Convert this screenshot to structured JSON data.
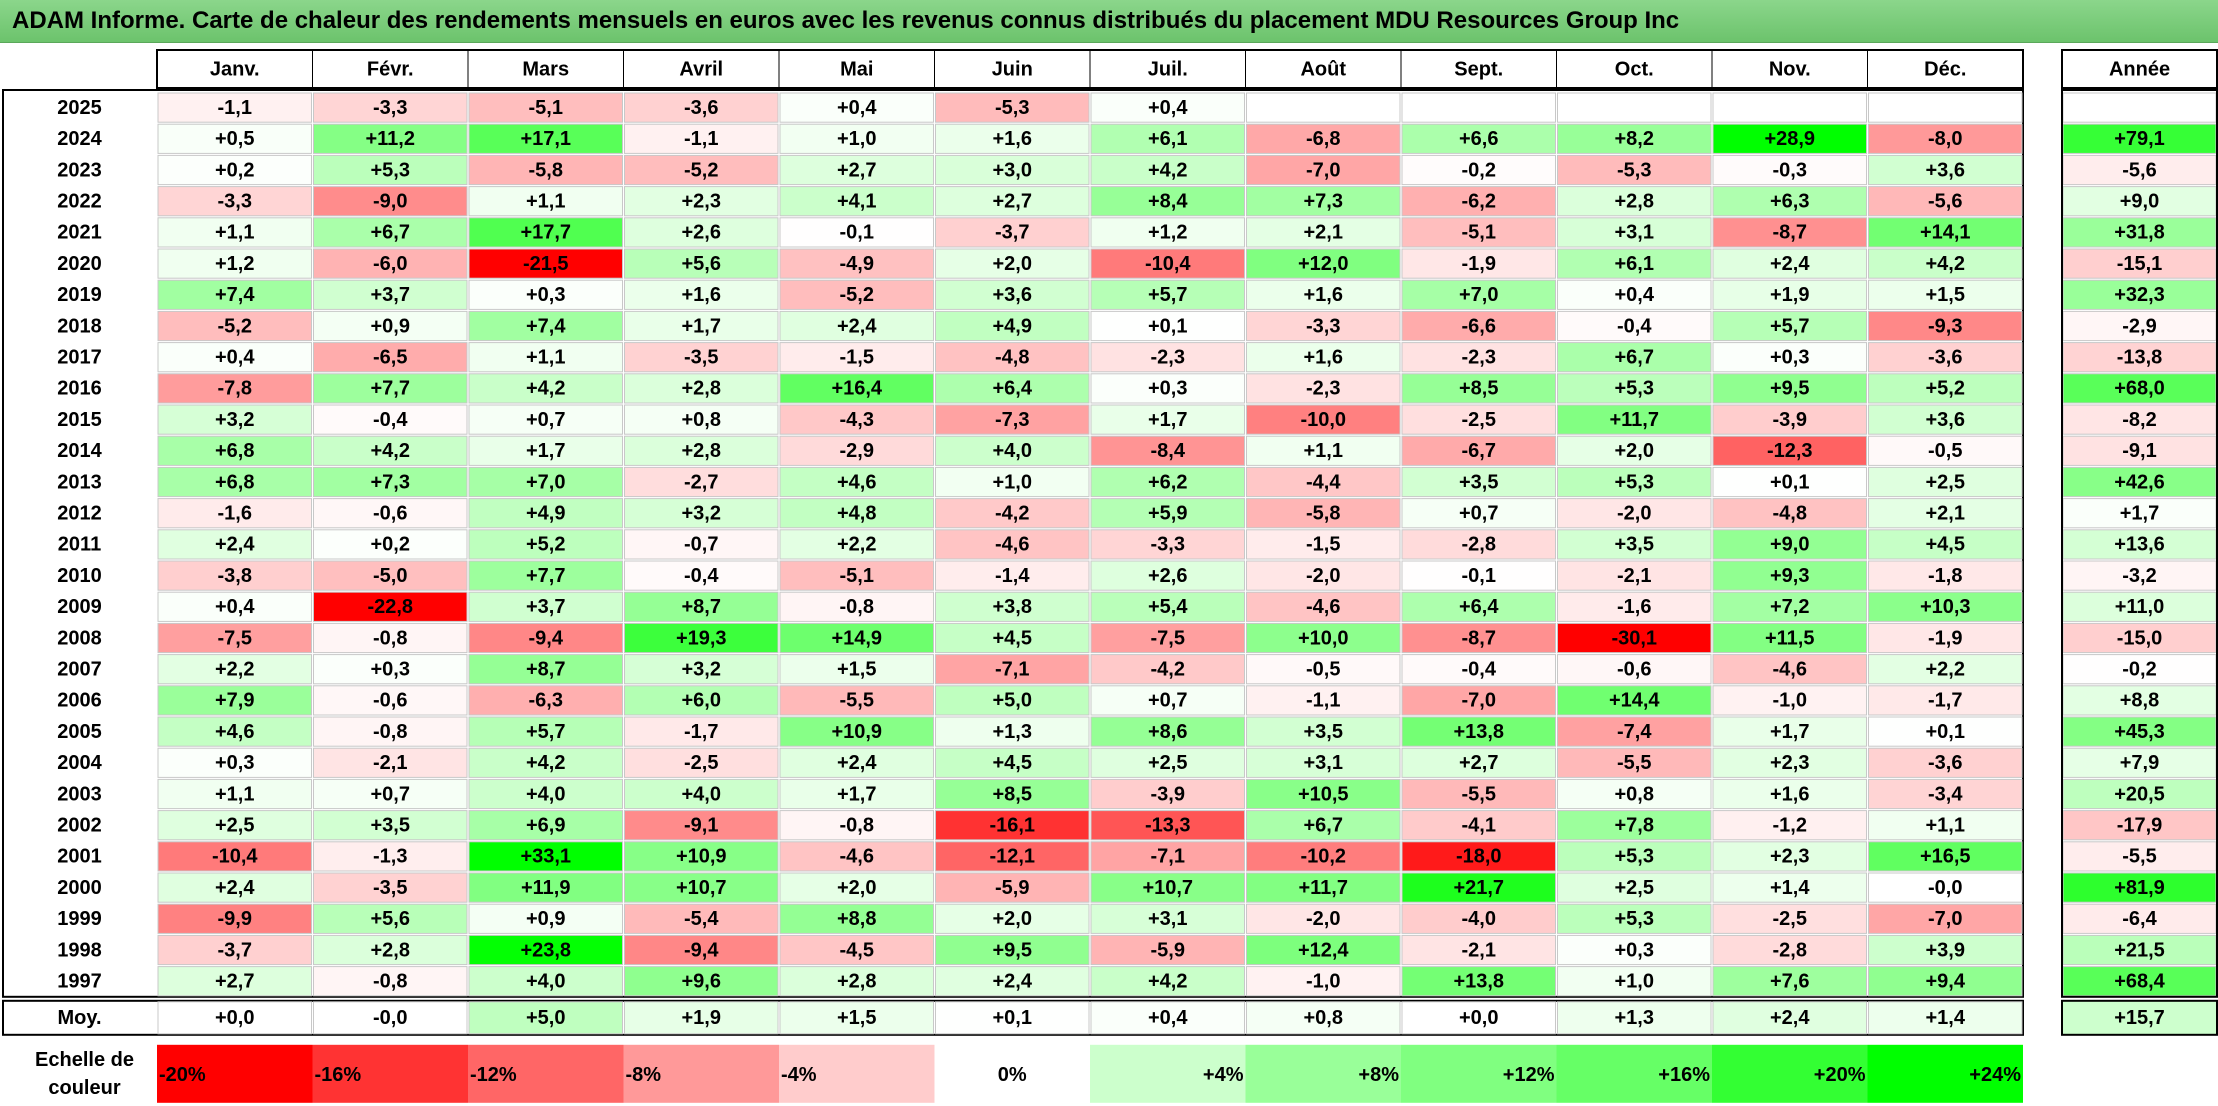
{
  "title": "ADAM Informe. Carte de chaleur des rendements mensuels en euros avec les revenus connus distribués du placement MDU Resources Group Inc",
  "chart_data": {
    "type": "heatmap",
    "title": "ADAM Informe. Carte de chaleur des rendements mensuels en euros avec les revenus connus distribués du placement MDU Resources Group Inc",
    "columns": [
      "Janv.",
      "Févr.",
      "Mars",
      "Avril",
      "Mai",
      "Juin",
      "Juil.",
      "Août",
      "Sept.",
      "Oct.",
      "Nov.",
      "Déc."
    ],
    "year_header": "Année",
    "rows": [
      {
        "year": "2025",
        "months": [
          "-1,1",
          "-3,3",
          "-5,1",
          "-3,6",
          "+0,4",
          "-5,3",
          "+0,4",
          "",
          "",
          "",
          "",
          ""
        ],
        "annual": ""
      },
      {
        "year": "2024",
        "months": [
          "+0,5",
          "+11,2",
          "+17,1",
          "-1,1",
          "+1,0",
          "+1,6",
          "+6,1",
          "-6,8",
          "+6,6",
          "+8,2",
          "+28,9",
          "-8,0"
        ],
        "annual": "+79,1"
      },
      {
        "year": "2023",
        "months": [
          "+0,2",
          "+5,3",
          "-5,8",
          "-5,2",
          "+2,7",
          "+3,0",
          "+4,2",
          "-7,0",
          "-0,2",
          "-5,3",
          "-0,3",
          "+3,6"
        ],
        "annual": "-5,6"
      },
      {
        "year": "2022",
        "months": [
          "-3,3",
          "-9,0",
          "+1,1",
          "+2,3",
          "+4,1",
          "+2,7",
          "+8,4",
          "+7,3",
          "-6,2",
          "+2,8",
          "+6,3",
          "-5,6"
        ],
        "annual": "+9,0"
      },
      {
        "year": "2021",
        "months": [
          "+1,1",
          "+6,7",
          "+17,7",
          "+2,6",
          "-0,1",
          "-3,7",
          "+1,2",
          "+2,1",
          "-5,1",
          "+3,1",
          "-8,7",
          "+14,1"
        ],
        "annual": "+31,8"
      },
      {
        "year": "2020",
        "months": [
          "+1,2",
          "-6,0",
          "-21,5",
          "+5,6",
          "-4,9",
          "+2,0",
          "-10,4",
          "+12,0",
          "-1,9",
          "+6,1",
          "+2,4",
          "+4,2"
        ],
        "annual": "-15,1"
      },
      {
        "year": "2019",
        "months": [
          "+7,4",
          "+3,7",
          "+0,3",
          "+1,6",
          "-5,2",
          "+3,6",
          "+5,7",
          "+1,6",
          "+7,0",
          "+0,4",
          "+1,9",
          "+1,5"
        ],
        "annual": "+32,3"
      },
      {
        "year": "2018",
        "months": [
          "-5,2",
          "+0,9",
          "+7,4",
          "+1,7",
          "+2,4",
          "+4,9",
          "+0,1",
          "-3,3",
          "-6,6",
          "-0,4",
          "+5,7",
          "-9,3"
        ],
        "annual": "-2,9"
      },
      {
        "year": "2017",
        "months": [
          "+0,4",
          "-6,5",
          "+1,1",
          "-3,5",
          "-1,5",
          "-4,8",
          "-2,3",
          "+1,6",
          "-2,3",
          "+6,7",
          "+0,3",
          "-3,6"
        ],
        "annual": "-13,8"
      },
      {
        "year": "2016",
        "months": [
          "-7,8",
          "+7,7",
          "+4,2",
          "+2,8",
          "+16,4",
          "+6,4",
          "+0,3",
          "-2,3",
          "+8,5",
          "+5,3",
          "+9,5",
          "+5,2"
        ],
        "annual": "+68,0"
      },
      {
        "year": "2015",
        "months": [
          "+3,2",
          "-0,4",
          "+0,7",
          "+0,8",
          "-4,3",
          "-7,3",
          "+1,7",
          "-10,0",
          "-2,5",
          "+11,7",
          "-3,9",
          "+3,6"
        ],
        "annual": "-8,2"
      },
      {
        "year": "2014",
        "months": [
          "+6,8",
          "+4,2",
          "+1,7",
          "+2,8",
          "-2,9",
          "+4,0",
          "-8,4",
          "+1,1",
          "-6,7",
          "+2,0",
          "-12,3",
          "-0,5"
        ],
        "annual": "-9,1"
      },
      {
        "year": "2013",
        "months": [
          "+6,8",
          "+7,3",
          "+7,0",
          "-2,7",
          "+4,6",
          "+1,0",
          "+6,2",
          "-4,4",
          "+3,5",
          "+5,3",
          "+0,1",
          "+2,5"
        ],
        "annual": "+42,6"
      },
      {
        "year": "2012",
        "months": [
          "-1,6",
          "-0,6",
          "+4,9",
          "+3,2",
          "+4,8",
          "-4,2",
          "+5,9",
          "-5,8",
          "+0,7",
          "-2,0",
          "-4,8",
          "+2,1"
        ],
        "annual": "+1,7"
      },
      {
        "year": "2011",
        "months": [
          "+2,4",
          "+0,2",
          "+5,2",
          "-0,7",
          "+2,2",
          "-4,6",
          "-3,3",
          "-1,5",
          "-2,8",
          "+3,5",
          "+9,0",
          "+4,5"
        ],
        "annual": "+13,6"
      },
      {
        "year": "2010",
        "months": [
          "-3,8",
          "-5,0",
          "+7,7",
          "-0,4",
          "-5,1",
          "-1,4",
          "+2,6",
          "-2,0",
          "-0,1",
          "-2,1",
          "+9,3",
          "-1,8"
        ],
        "annual": "-3,2"
      },
      {
        "year": "2009",
        "months": [
          "+0,4",
          "-22,8",
          "+3,7",
          "+8,7",
          "-0,8",
          "+3,8",
          "+5,4",
          "-4,6",
          "+6,4",
          "-1,6",
          "+7,2",
          "+10,3"
        ],
        "annual": "+11,0"
      },
      {
        "year": "2008",
        "months": [
          "-7,5",
          "-0,8",
          "-9,4",
          "+19,3",
          "+14,9",
          "+4,5",
          "-7,5",
          "+10,0",
          "-8,7",
          "-30,1",
          "+11,5",
          "-1,9"
        ],
        "annual": "-15,0"
      },
      {
        "year": "2007",
        "months": [
          "+2,2",
          "+0,3",
          "+8,7",
          "+3,2",
          "+1,5",
          "-7,1",
          "-4,2",
          "-0,5",
          "-0,4",
          "-0,6",
          "-4,6",
          "+2,2"
        ],
        "annual": "-0,2"
      },
      {
        "year": "2006",
        "months": [
          "+7,9",
          "-0,6",
          "-6,3",
          "+6,0",
          "-5,5",
          "+5,0",
          "+0,7",
          "-1,1",
          "-7,0",
          "+14,4",
          "-1,0",
          "-1,7"
        ],
        "annual": "+8,8"
      },
      {
        "year": "2005",
        "months": [
          "+4,6",
          "-0,8",
          "+5,7",
          "-1,7",
          "+10,9",
          "+1,3",
          "+8,6",
          "+3,5",
          "+13,8",
          "-7,4",
          "+1,7",
          "+0,1"
        ],
        "annual": "+45,3"
      },
      {
        "year": "2004",
        "months": [
          "+0,3",
          "-2,1",
          "+4,2",
          "-2,5",
          "+2,4",
          "+4,5",
          "+2,5",
          "+3,1",
          "+2,7",
          "-5,5",
          "+2,3",
          "-3,6"
        ],
        "annual": "+7,9"
      },
      {
        "year": "2003",
        "months": [
          "+1,1",
          "+0,7",
          "+4,0",
          "+4,0",
          "+1,7",
          "+8,5",
          "-3,9",
          "+10,5",
          "-5,5",
          "+0,8",
          "+1,6",
          "-3,4"
        ],
        "annual": "+20,5"
      },
      {
        "year": "2002",
        "months": [
          "+2,5",
          "+3,5",
          "+6,9",
          "-9,1",
          "-0,8",
          "-16,1",
          "-13,3",
          "+6,7",
          "-4,1",
          "+7,8",
          "-1,2",
          "+1,1"
        ],
        "annual": "-17,9"
      },
      {
        "year": "2001",
        "months": [
          "-10,4",
          "-1,3",
          "+33,1",
          "+10,9",
          "-4,6",
          "-12,1",
          "-7,1",
          "-10,2",
          "-18,0",
          "+5,3",
          "+2,3",
          "+16,5"
        ],
        "annual": "-5,5"
      },
      {
        "year": "2000",
        "months": [
          "+2,4",
          "-3,5",
          "+11,9",
          "+10,7",
          "+2,0",
          "-5,9",
          "+10,7",
          "+11,7",
          "+21,7",
          "+2,5",
          "+1,4",
          "-0,0"
        ],
        "annual": "+81,9"
      },
      {
        "year": "1999",
        "months": [
          "-9,9",
          "+5,6",
          "+0,9",
          "-5,4",
          "+8,8",
          "+2,0",
          "+3,1",
          "-2,0",
          "-4,0",
          "+5,3",
          "-2,5",
          "-7,0"
        ],
        "annual": "-6,4"
      },
      {
        "year": "1998",
        "months": [
          "-3,7",
          "+2,8",
          "+23,8",
          "-9,4",
          "-4,5",
          "+9,5",
          "-5,9",
          "+12,4",
          "-2,1",
          "+0,3",
          "-2,8",
          "+3,9"
        ],
        "annual": "+21,5"
      },
      {
        "year": "1997",
        "months": [
          "+2,7",
          "-0,8",
          "+4,0",
          "+9,6",
          "+2,8",
          "+2,4",
          "+4,2",
          "-1,0",
          "+13,8",
          "+1,0",
          "+7,6",
          "+9,4"
        ],
        "annual": "+68,4"
      }
    ],
    "average": {
      "label": "Moy.",
      "months": [
        "+0,0",
        "-0,0",
        "+5,0",
        "+1,9",
        "+1,5",
        "+0,1",
        "+0,4",
        "+0,8",
        "+0,0",
        "+1,3",
        "+2,4",
        "+1,4"
      ],
      "annual": "+15,7"
    },
    "scale": {
      "label_line1": "Echelle de",
      "label_line2": "couleur",
      "stops": [
        {
          "label": "-20%",
          "value": -20,
          "color": "#ff0000"
        },
        {
          "label": "-16%",
          "value": -16,
          "color": "#ff3333"
        },
        {
          "label": "-12%",
          "value": -12,
          "color": "#ff6666"
        },
        {
          "label": "-8%",
          "value": -8,
          "color": "#ff9999"
        },
        {
          "label": "-4%",
          "value": -4,
          "color": "#ffcccc"
        },
        {
          "label": "0%",
          "value": 0,
          "color": "#ffffff"
        },
        {
          "label": "+4%",
          "value": 4,
          "color": "#ccffcc"
        },
        {
          "label": "+8%",
          "value": 8,
          "color": "#99ff99"
        },
        {
          "label": "+12%",
          "value": 12,
          "color": "#80ff80"
        },
        {
          "label": "+16%",
          "value": 16,
          "color": "#66ff66"
        },
        {
          "label": "+20%",
          "value": 20,
          "color": "#33ff33"
        },
        {
          "label": "+24%",
          "value": 24,
          "color": "#00ff00"
        }
      ]
    }
  }
}
